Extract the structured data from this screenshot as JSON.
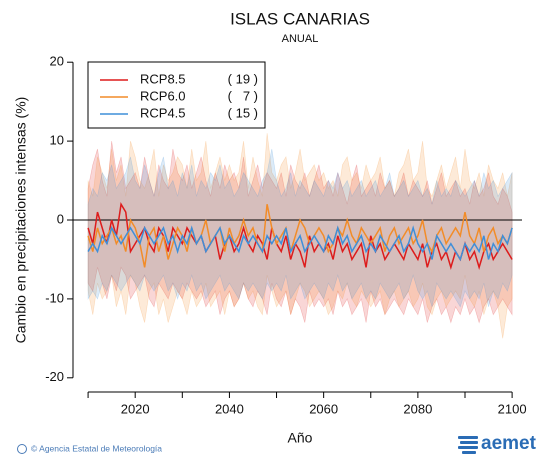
{
  "chart_data": {
    "type": "line",
    "title": "ISLAS CANARIAS",
    "subtitle": "ANUAL",
    "y_label": "Cambio en precipitaciones intensas (%)",
    "x_label": "Año",
    "footer": "© Agencia Estatal de Meteorología",
    "logo": "aemet",
    "xlim": [
      2006.8,
      2102.1
    ],
    "xticks": [
      2020,
      2040,
      2060,
      2080,
      2100
    ],
    "ylim": [
      -21.8,
      21.8
    ],
    "yticks": [
      -20,
      -10,
      0,
      10,
      20
    ],
    "hline": 0,
    "x": [
      2010,
      2011,
      2012,
      2013,
      2014,
      2015,
      2016,
      2017,
      2018,
      2019,
      2020,
      2021,
      2022,
      2023,
      2024,
      2025,
      2026,
      2027,
      2028,
      2029,
      2030,
      2031,
      2032,
      2033,
      2034,
      2035,
      2036,
      2037,
      2038,
      2039,
      2040,
      2041,
      2042,
      2043,
      2044,
      2045,
      2046,
      2047,
      2048,
      2049,
      2050,
      2051,
      2052,
      2053,
      2054,
      2055,
      2056,
      2057,
      2058,
      2059,
      2060,
      2061,
      2062,
      2063,
      2064,
      2065,
      2066,
      2067,
      2068,
      2069,
      2070,
      2071,
      2072,
      2073,
      2074,
      2075,
      2076,
      2077,
      2078,
      2079,
      2080,
      2081,
      2082,
      2083,
      2084,
      2085,
      2086,
      2087,
      2088,
      2089,
      2090,
      2091,
      2092,
      2093,
      2094,
      2095,
      2096,
      2097,
      2098,
      2099,
      2100
    ],
    "series": [
      {
        "name": "RCP8.5",
        "color": "#dd1c1c",
        "count": {
          "value": 19,
          "label": "( 19 )"
        },
        "values": [
          -1,
          -3,
          1,
          -1,
          -3,
          0,
          -2,
          2,
          1,
          -4,
          -3,
          -2,
          -1,
          -3,
          -4,
          -1,
          -2,
          -4,
          -1,
          -2,
          -3,
          -1,
          -2,
          -3,
          -2,
          -4,
          -3,
          -2,
          -5,
          -3,
          -2,
          -4,
          -3,
          -1,
          -3,
          -4,
          -2,
          -3,
          -5,
          -1,
          -3,
          -4,
          -2,
          -5,
          -3,
          -4,
          -6,
          -2,
          -4,
          -3,
          -4,
          -3,
          -5,
          -2,
          -4,
          -3,
          -5,
          -4,
          -3,
          -6,
          -2,
          -4,
          -3,
          -5,
          -4,
          -3,
          -4,
          -5,
          -3,
          -4,
          -5,
          -3,
          -6,
          -4,
          -3,
          -5,
          -4,
          -6,
          -4,
          -5,
          -3,
          -5,
          -4,
          -6,
          -4,
          -3,
          -5,
          -4,
          -3,
          -4,
          -5
        ],
        "upper": [
          4,
          7,
          9,
          5,
          3,
          10,
          6,
          8,
          4,
          5,
          6,
          4,
          8,
          5,
          3,
          7,
          5,
          4,
          9,
          6,
          5,
          7,
          4,
          6,
          8,
          5,
          3,
          6,
          4,
          7,
          5,
          6,
          4,
          8,
          3,
          5,
          7,
          4,
          6,
          5,
          4,
          6,
          3,
          7,
          5,
          4,
          6,
          3,
          5,
          7,
          4,
          5,
          3,
          6,
          4,
          2,
          5,
          7,
          3,
          4,
          5,
          3,
          6,
          4,
          5,
          3,
          4,
          6,
          3,
          5,
          4,
          3,
          5,
          2,
          4,
          6,
          3,
          4,
          5,
          3,
          4,
          2,
          5,
          3,
          4,
          6,
          3,
          2,
          4,
          3,
          1
        ],
        "lower": [
          -8,
          -9,
          -6,
          -8,
          -10,
          -7,
          -9,
          -6,
          -7,
          -10,
          -9,
          -8,
          -7,
          -10,
          -11,
          -8,
          -9,
          -10,
          -8,
          -9,
          -10,
          -8,
          -9,
          -10,
          -9,
          -11,
          -10,
          -9,
          -12,
          -10,
          -9,
          -11,
          -10,
          -8,
          -10,
          -11,
          -9,
          -10,
          -12,
          -8,
          -10,
          -11,
          -9,
          -12,
          -10,
          -11,
          -13,
          -9,
          -11,
          -10,
          -11,
          -10,
          -12,
          -9,
          -11,
          -10,
          -12,
          -11,
          -10,
          -13,
          -9,
          -11,
          -10,
          -12,
          -11,
          -10,
          -11,
          -12,
          -10,
          -11,
          -12,
          -10,
          -13,
          -11,
          -10,
          -12,
          -11,
          -13,
          -11,
          -12,
          -10,
          -12,
          -11,
          -13,
          -11,
          -10,
          -12,
          -11,
          -10,
          -11,
          -12
        ]
      },
      {
        "name": "RCP6.0",
        "color": "#f28c28",
        "count": {
          "value": 7,
          "label": "(   7 )"
        },
        "values": [
          -2,
          -4,
          -1,
          -3,
          -2,
          -1,
          -3,
          -2,
          -4,
          0,
          -1,
          -3,
          -6,
          -2,
          -1,
          -4,
          -2,
          -5,
          -3,
          -1,
          -2,
          -4,
          -1,
          -3,
          -2,
          0,
          -3,
          -2,
          -1,
          -4,
          -1,
          -3,
          -2,
          0,
          -2,
          -1,
          -3,
          -4,
          2,
          -1,
          -3,
          -2,
          -1,
          -4,
          -2,
          0,
          -1,
          -3,
          -2,
          -1,
          -2,
          -4,
          -3,
          -1,
          -2,
          0,
          -2,
          -3,
          -1,
          -2,
          -3,
          -2,
          -1,
          -4,
          -2,
          -1,
          -3,
          -2,
          -1,
          -3,
          -2,
          0,
          -3,
          -4,
          -2,
          -1,
          -3,
          -2,
          -1,
          -2,
          1,
          -2,
          -3,
          -1,
          -4,
          -2,
          -1,
          -3,
          -2,
          -3,
          -1
        ],
        "upper": [
          5,
          3,
          8,
          6,
          4,
          9,
          5,
          7,
          3,
          10,
          8,
          5,
          4,
          6,
          9,
          3,
          7,
          5,
          6,
          8,
          7,
          4,
          9,
          5,
          6,
          10,
          4,
          6,
          8,
          5,
          7,
          5,
          6,
          10,
          4,
          8,
          5,
          3,
          11,
          6,
          5,
          7,
          8,
          4,
          6,
          9,
          5,
          6,
          7,
          5,
          6,
          4,
          5,
          3,
          7,
          8,
          5,
          6,
          4,
          7,
          5,
          6,
          8,
          4,
          5,
          3,
          6,
          7,
          9,
          5,
          6,
          10,
          4,
          3,
          5,
          7,
          4,
          6,
          8,
          4,
          9,
          5,
          4,
          6,
          3,
          7,
          5,
          4,
          6,
          3,
          6
        ],
        "lower": [
          -9,
          -12,
          -8,
          -10,
          -9,
          -7,
          -11,
          -9,
          -12,
          -7,
          -8,
          -11,
          -13,
          -9,
          -8,
          -12,
          -10,
          -13,
          -11,
          -9,
          -10,
          -12,
          -9,
          -11,
          -10,
          -8,
          -11,
          -10,
          -9,
          -12,
          -9,
          -11,
          -10,
          -8,
          -10,
          -9,
          -11,
          -12,
          -7,
          -9,
          -11,
          -10,
          -9,
          -12,
          -10,
          -8,
          -9,
          -11,
          -10,
          -9,
          -10,
          -12,
          -11,
          -9,
          -10,
          -8,
          -10,
          -11,
          -9,
          -10,
          -11,
          -10,
          -9,
          -12,
          -10,
          -9,
          -11,
          -10,
          -9,
          -11,
          -10,
          -8,
          -11,
          -12,
          -10,
          -9,
          -11,
          -10,
          -9,
          -10,
          -7,
          -10,
          -11,
          -9,
          -12,
          -10,
          -9,
          -11,
          -15,
          -11,
          -10
        ]
      },
      {
        "name": "RCP4.5",
        "color": "#3f8fd9",
        "count": {
          "value": 15,
          "label": "( 15 )"
        },
        "values": [
          -4,
          -3,
          -4,
          -2,
          -3,
          -1,
          -2,
          -3,
          -2,
          -1,
          -2,
          -3,
          -1,
          -2,
          -3,
          -2,
          -1,
          -3,
          -2,
          -4,
          -2,
          -3,
          -1,
          -3,
          -2,
          -4,
          -3,
          -2,
          -1,
          -3,
          -2,
          -3,
          -4,
          -2,
          -3,
          -2,
          -3,
          -4,
          -2,
          -3,
          -2,
          -3,
          -1,
          -4,
          -3,
          -2,
          -4,
          -3,
          -2,
          -3,
          -4,
          -2,
          -3,
          -1,
          -3,
          -2,
          -4,
          -3,
          -2,
          -4,
          -3,
          -4,
          -2,
          -3,
          -4,
          -3,
          -2,
          -4,
          -3,
          -1,
          -3,
          -4,
          -3,
          -5,
          -2,
          -3,
          -4,
          -3,
          -4,
          -5,
          -3,
          -4,
          -3,
          -4,
          -2,
          -5,
          -3,
          -4,
          -2,
          -3,
          -1
        ],
        "upper": [
          2,
          4,
          3,
          6,
          5,
          7,
          4,
          5,
          6,
          8,
          5,
          4,
          7,
          5,
          3,
          6,
          8,
          4,
          5,
          3,
          6,
          4,
          7,
          3,
          5,
          4,
          6,
          5,
          7,
          4,
          5,
          3,
          4,
          6,
          5,
          4,
          3,
          5,
          6,
          9,
          5,
          3,
          4,
          6,
          3,
          5,
          4,
          3,
          5,
          4,
          3,
          5,
          4,
          6,
          4,
          5,
          3,
          4,
          5,
          3,
          4,
          5,
          3,
          4,
          6,
          3,
          4,
          5,
          3,
          4,
          5,
          3,
          4,
          2,
          5,
          3,
          4,
          3,
          5,
          4,
          3,
          4,
          5,
          3,
          6,
          4,
          5,
          3,
          4,
          5,
          6
        ],
        "lower": [
          -10,
          -9,
          -10,
          -8,
          -9,
          -7,
          -8,
          -9,
          -8,
          -7,
          -8,
          -9,
          -7,
          -8,
          -9,
          -8,
          -7,
          -9,
          -8,
          -10,
          -8,
          -9,
          -7,
          -9,
          -8,
          -10,
          -9,
          -8,
          -7,
          -9,
          -8,
          -9,
          -10,
          -8,
          -9,
          -8,
          -9,
          -10,
          -8,
          -9,
          -8,
          -9,
          -7,
          -10,
          -9,
          -8,
          -10,
          -9,
          -8,
          -9,
          -10,
          -8,
          -9,
          -7,
          -9,
          -8,
          -10,
          -9,
          -8,
          -10,
          -9,
          -10,
          -8,
          -9,
          -10,
          -9,
          -8,
          -10,
          -9,
          -7,
          -9,
          -10,
          -9,
          -11,
          -8,
          -9,
          -10,
          -9,
          -10,
          -11,
          -9,
          -10,
          -9,
          -10,
          -8,
          -11,
          -9,
          -10,
          -8,
          -9,
          -7
        ]
      }
    ]
  }
}
